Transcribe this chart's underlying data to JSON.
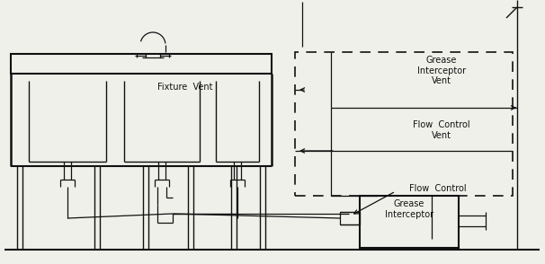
{
  "bg_color": "#f0f0eb",
  "line_color": "#111111",
  "fig_width": 6.06,
  "fig_height": 2.94,
  "labels": {
    "fixture_vent": "Fixture  Vent",
    "grease_interceptor_vent": "Grease\nInterceptor\nVent",
    "flow_control_vent": "Flow  Control\nVent",
    "flow_control": "Flow  Control",
    "grease_interceptor": "Grease\nInterceptor"
  },
  "font_size": 7.0
}
